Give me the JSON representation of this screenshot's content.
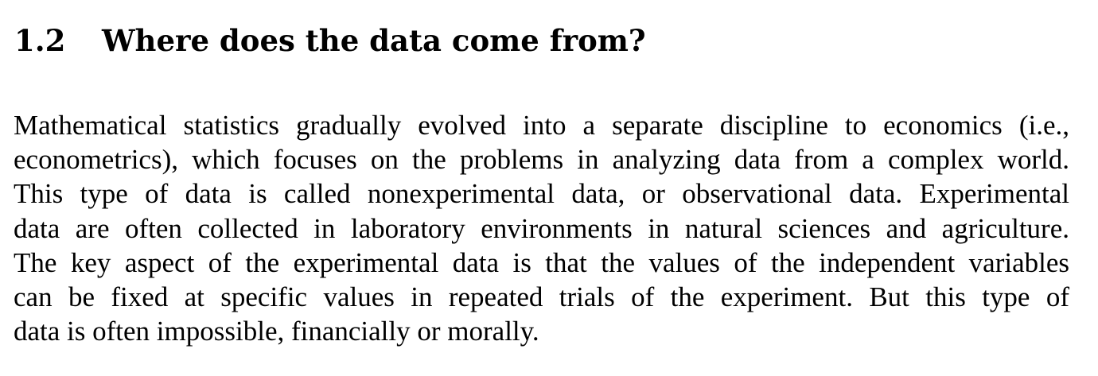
{
  "section": {
    "number": "1.2",
    "title": "Where does the data come from?"
  },
  "paragraph": {
    "lines": [
      "Mathematical statistics gradually evolved into a separate discipline to economics (i.e.,",
      "econometrics), which focuses on the problems in analyzing data from a complex world.",
      "This type of data is called nonexperimental data, or observational data. Experimental",
      "data are often collected in laboratory environments in natural sciences and agriculture.",
      "The key aspect of the experimental data is that the values of the independent variables",
      "can be fixed at specific values in repeated trials of the experiment. But this type of",
      "data is often impossible, financially or morally."
    ]
  }
}
